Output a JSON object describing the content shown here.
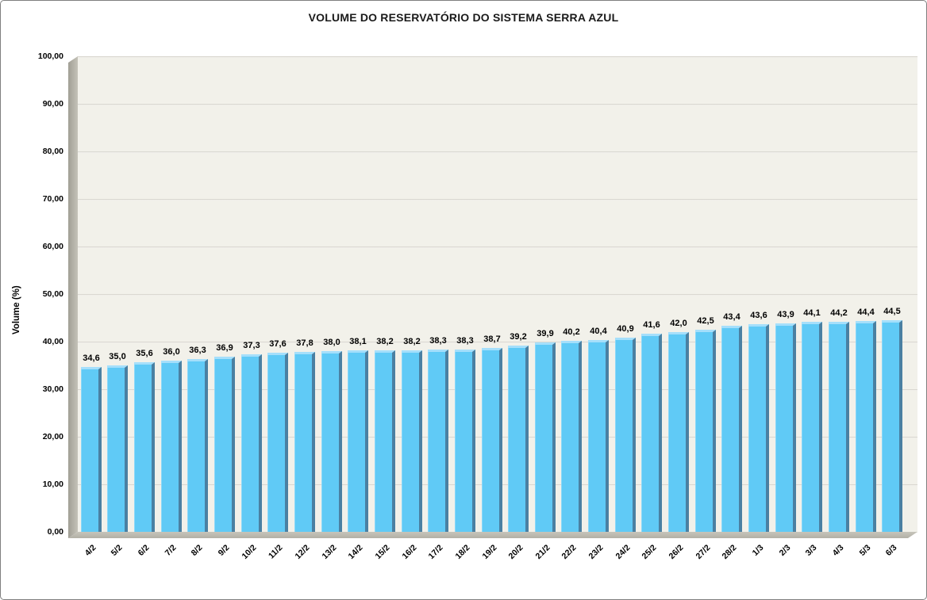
{
  "window": {
    "background": "#ffffff",
    "border_color": "#7f7f7f"
  },
  "chart_data": {
    "type": "bar",
    "title": "VOLUME DO RESERVATÓRIO DO SISTEMA SERRA AZUL",
    "xlabel": "",
    "ylabel": "Volume (%)",
    "ylim": [
      0,
      100
    ],
    "ytick_step": 10,
    "ytick_labels": [
      "0,00",
      "10,00",
      "20,00",
      "30,00",
      "40,00",
      "50,00",
      "60,00",
      "70,00",
      "80,00",
      "90,00",
      "100,00"
    ],
    "grid": true,
    "legend_position": "none",
    "categories": [
      "4/2",
      "5/2",
      "6/2",
      "7/2",
      "8/2",
      "9/2",
      "10/2",
      "11/2",
      "12/2",
      "13/2",
      "14/2",
      "15/2",
      "16/2",
      "17/2",
      "18/2",
      "19/2",
      "20/2",
      "21/2",
      "22/2",
      "23/2",
      "24/2",
      "25/2",
      "26/2",
      "27/2",
      "28/2",
      "1/3",
      "2/3",
      "3/3",
      "4/3",
      "5/3",
      "6/3"
    ],
    "values": [
      34.6,
      35.0,
      35.6,
      36.0,
      36.3,
      36.9,
      37.3,
      37.6,
      37.8,
      38.0,
      38.1,
      38.2,
      38.2,
      38.3,
      38.3,
      38.7,
      39.2,
      39.9,
      40.2,
      40.4,
      40.9,
      41.6,
      42.0,
      42.5,
      43.4,
      43.6,
      43.9,
      44.1,
      44.2,
      44.4,
      44.5
    ],
    "value_labels": [
      "34,6",
      "35,0",
      "35,6",
      "36,0",
      "36,3",
      "36,9",
      "37,3",
      "37,6",
      "37,8",
      "38,0",
      "38,1",
      "38,2",
      "38,2",
      "38,3",
      "38,3",
      "38,7",
      "39,2",
      "39,9",
      "40,2",
      "40,4",
      "40,9",
      "41,6",
      "42,0",
      "42,5",
      "43,4",
      "43,6",
      "43,9",
      "44,1",
      "44,2",
      "44,4",
      "44,5"
    ],
    "colors": {
      "bar_fill": "#60caf6",
      "bar_edge_dark": "#4a80a2",
      "bar_edge_light": "#a5dffb",
      "plot_background": "#f2f1ea",
      "wall_gray": "#aba99f",
      "floor_gray": "#bcbab0",
      "gridline": "#cfcdc4",
      "text": "#000000"
    }
  }
}
